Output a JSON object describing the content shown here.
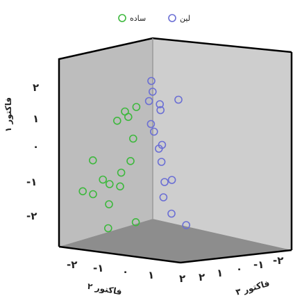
{
  "chart_data": {
    "type": "scatter",
    "projection": "3d",
    "legend": {
      "placement": "top-center",
      "entries": [
        {
          "label": "ساده",
          "color": "#3db83d"
        },
        {
          "label": "لین",
          "color": "#6b6fd4"
        }
      ]
    },
    "z_axis": {
      "title": "فاکتور ۱",
      "ticks": [
        "۲",
        "۱",
        "۰",
        "-۱",
        "-۲"
      ]
    },
    "x_axis": {
      "title": "فاکتور ۲",
      "ticks": [
        "-۲",
        "-۱",
        "۰",
        "۱",
        "۲"
      ]
    },
    "y_axis": {
      "title": "فاکتور ۳",
      "ticks": [
        "۲",
        "۱",
        "۰",
        "-۱",
        "-۲"
      ]
    },
    "series": [
      {
        "name": "ساده",
        "color": "#3db83d",
        "points": [
          [
            -0.25,
            0.55,
            1.0
          ],
          [
            -0.55,
            0.45,
            0.9
          ],
          [
            -0.45,
            0.4,
            0.75
          ],
          [
            -0.75,
            0.35,
            0.65
          ],
          [
            -0.3,
            0.3,
            0.1
          ],
          [
            -1.4,
            0.2,
            -0.55
          ],
          [
            -0.35,
            0.15,
            -0.55
          ],
          [
            -0.6,
            0.1,
            -0.9
          ],
          [
            -1.1,
            0.05,
            -1.1
          ],
          [
            -0.9,
            -0.05,
            -1.2
          ],
          [
            -1.65,
            0.0,
            -1.45
          ],
          [
            -0.6,
            -0.1,
            -1.25
          ],
          [
            -1.35,
            -0.1,
            -1.5
          ],
          [
            -0.9,
            -0.15,
            -1.8
          ],
          [
            -0.15,
            -0.2,
            -2.35
          ],
          [
            -0.9,
            -0.3,
            -2.5
          ]
        ]
      },
      {
        "name": "لین",
        "color": "#6b6fd4",
        "points": [
          [
            0.05,
            1.3,
            1.5
          ],
          [
            0.1,
            1.2,
            1.2
          ],
          [
            0.0,
            1.2,
            0.9
          ],
          [
            0.3,
            1.2,
            0.8
          ],
          [
            0.35,
            1.0,
            0.7
          ],
          [
            0.8,
            1.3,
            0.9
          ],
          [
            0.1,
            0.9,
            0.3
          ],
          [
            0.2,
            0.8,
            0.1
          ],
          [
            0.35,
            0.7,
            -0.4
          ],
          [
            0.5,
            0.3,
            -0.1
          ],
          [
            0.5,
            0.2,
            -0.6
          ],
          [
            0.6,
            0.1,
            -1.2
          ],
          [
            0.85,
            -0.2,
            -1.0
          ],
          [
            0.6,
            -0.1,
            -1.6
          ],
          [
            0.9,
            -0.6,
            -1.9
          ],
          [
            1.4,
            -1.2,
            -2.0
          ]
        ]
      }
    ]
  }
}
